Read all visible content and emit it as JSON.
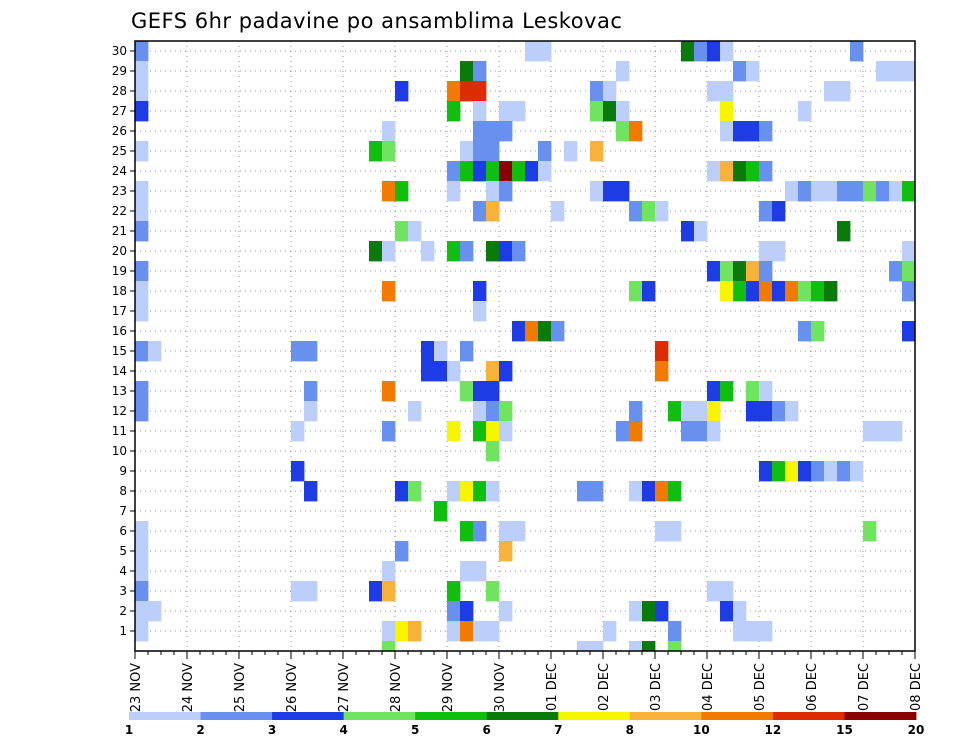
{
  "chart_data": {
    "type": "heatmap",
    "title": "GEFS 6hr padavine po ansamblima Leskovac",
    "y_tick_labels": [
      "1",
      "2",
      "3",
      "4",
      "5",
      "6",
      "7",
      "8",
      "9",
      "10",
      "11",
      "12",
      "13",
      "14",
      "15",
      "16",
      "17",
      "18",
      "19",
      "20",
      "21",
      "22",
      "23",
      "24",
      "25",
      "26",
      "27",
      "28",
      "29",
      "30"
    ],
    "x_tick_labels": [
      "23 NOV",
      "24 NOV",
      "25 NOV",
      "26 NOV",
      "27 NOV",
      "28 NOV",
      "29 NOV",
      "30 NOV",
      "01 DEC",
      "02 DEC",
      "03 DEC",
      "04 DEC",
      "05 DEC",
      "06 DEC",
      "07 DEC",
      "08 DEC"
    ],
    "x_steps_per_day": 4,
    "x_steps_total": 60,
    "ylim": [
      0.5,
      30.5
    ],
    "grid": true,
    "legend_placement": "bottom",
    "levels": [
      "1",
      "2",
      "3",
      "4",
      "5",
      "6",
      "7",
      "8",
      "10",
      "12",
      "15",
      "20"
    ],
    "palette": [
      "#bccffa",
      "#6890ee",
      "#1e3ce6",
      "#70e460",
      "#10be10",
      "#0a7a0a",
      "#f6f600",
      "#f8b23a",
      "#f37a00",
      "#dd2c00",
      "#8b0000"
    ],
    "note": "cells: [member, time_step, color_class]; time_step 0 = 23 NOV 00z (6-hourly)",
    "cells": [
      [
        30,
        0,
        1
      ],
      [
        30,
        30,
        0
      ],
      [
        30,
        31,
        0
      ],
      [
        30,
        42,
        5
      ],
      [
        30,
        43,
        1
      ],
      [
        30,
        44,
        2
      ],
      [
        30,
        45,
        0
      ],
      [
        30,
        55,
        1
      ],
      [
        29,
        0,
        0
      ],
      [
        29,
        25,
        5
      ],
      [
        29,
        26,
        1
      ],
      [
        29,
        37,
        0
      ],
      [
        29,
        46,
        1
      ],
      [
        29,
        47,
        0
      ],
      [
        29,
        57,
        0
      ],
      [
        29,
        58,
        0
      ],
      [
        29,
        59,
        0
      ],
      [
        28,
        0,
        0
      ],
      [
        28,
        20,
        2
      ],
      [
        28,
        24,
        8
      ],
      [
        28,
        25,
        9
      ],
      [
        28,
        26,
        9
      ],
      [
        28,
        35,
        1
      ],
      [
        28,
        36,
        0
      ],
      [
        28,
        44,
        0
      ],
      [
        28,
        45,
        0
      ],
      [
        28,
        53,
        0
      ],
      [
        28,
        54,
        0
      ],
      [
        27,
        0,
        2
      ],
      [
        27,
        24,
        4
      ],
      [
        27,
        26,
        0
      ],
      [
        27,
        28,
        0
      ],
      [
        27,
        29,
        0
      ],
      [
        27,
        35,
        3
      ],
      [
        27,
        36,
        5
      ],
      [
        27,
        37,
        0
      ],
      [
        27,
        45,
        6
      ],
      [
        27,
        51,
        0
      ],
      [
        26,
        19,
        0
      ],
      [
        26,
        26,
        1
      ],
      [
        26,
        27,
        1
      ],
      [
        26,
        28,
        1
      ],
      [
        26,
        37,
        3
      ],
      [
        26,
        38,
        8
      ],
      [
        26,
        45,
        0
      ],
      [
        26,
        46,
        2
      ],
      [
        26,
        47,
        2
      ],
      [
        26,
        48,
        1
      ],
      [
        25,
        0,
        0
      ],
      [
        25,
        18,
        4
      ],
      [
        25,
        19,
        3
      ],
      [
        25,
        25,
        0
      ],
      [
        25,
        26,
        1
      ],
      [
        25,
        27,
        1
      ],
      [
        25,
        31,
        1
      ],
      [
        25,
        33,
        0
      ],
      [
        25,
        35,
        7
      ],
      [
        24,
        24,
        1
      ],
      [
        24,
        25,
        4
      ],
      [
        24,
        26,
        2
      ],
      [
        24,
        27,
        4
      ],
      [
        24,
        28,
        10
      ],
      [
        24,
        29,
        4
      ],
      [
        24,
        30,
        2
      ],
      [
        24,
        31,
        0
      ],
      [
        24,
        44,
        0
      ],
      [
        24,
        45,
        7
      ],
      [
        24,
        46,
        5
      ],
      [
        24,
        47,
        4
      ],
      [
        24,
        48,
        1
      ],
      [
        23,
        0,
        0
      ],
      [
        23,
        19,
        8
      ],
      [
        23,
        20,
        4
      ],
      [
        23,
        24,
        0
      ],
      [
        23,
        27,
        0
      ],
      [
        23,
        28,
        1
      ],
      [
        23,
        35,
        0
      ],
      [
        23,
        36,
        2
      ],
      [
        23,
        37,
        2
      ],
      [
        23,
        50,
        0
      ],
      [
        23,
        51,
        1
      ],
      [
        23,
        52,
        0
      ],
      [
        23,
        53,
        0
      ],
      [
        23,
        54,
        1
      ],
      [
        23,
        55,
        1
      ],
      [
        23,
        56,
        3
      ],
      [
        23,
        57,
        1
      ],
      [
        23,
        58,
        0
      ],
      [
        23,
        59,
        4
      ],
      [
        22,
        0,
        0
      ],
      [
        22,
        26,
        1
      ],
      [
        22,
        27,
        7
      ],
      [
        22,
        32,
        0
      ],
      [
        22,
        38,
        1
      ],
      [
        22,
        39,
        3
      ],
      [
        22,
        40,
        0
      ],
      [
        22,
        48,
        1
      ],
      [
        22,
        49,
        2
      ],
      [
        21,
        0,
        1
      ],
      [
        21,
        20,
        3
      ],
      [
        21,
        21,
        0
      ],
      [
        21,
        42,
        2
      ],
      [
        21,
        43,
        0
      ],
      [
        21,
        54,
        5
      ],
      [
        20,
        18,
        5
      ],
      [
        20,
        19,
        0
      ],
      [
        20,
        22,
        0
      ],
      [
        20,
        24,
        4
      ],
      [
        20,
        25,
        1
      ],
      [
        20,
        27,
        5
      ],
      [
        20,
        28,
        2
      ],
      [
        20,
        29,
        1
      ],
      [
        20,
        48,
        0
      ],
      [
        20,
        49,
        0
      ],
      [
        20,
        59,
        0
      ],
      [
        19,
        0,
        1
      ],
      [
        19,
        44,
        2
      ],
      [
        19,
        45,
        3
      ],
      [
        19,
        46,
        5
      ],
      [
        19,
        47,
        7
      ],
      [
        19,
        48,
        1
      ],
      [
        19,
        58,
        1
      ],
      [
        19,
        59,
        3
      ],
      [
        18,
        0,
        0
      ],
      [
        18,
        19,
        8
      ],
      [
        18,
        26,
        2
      ],
      [
        18,
        38,
        3
      ],
      [
        18,
        39,
        2
      ],
      [
        18,
        45,
        6
      ],
      [
        18,
        46,
        4
      ],
      [
        18,
        47,
        2
      ],
      [
        18,
        48,
        8
      ],
      [
        18,
        49,
        2
      ],
      [
        18,
        50,
        8
      ],
      [
        18,
        51,
        3
      ],
      [
        18,
        52,
        4
      ],
      [
        18,
        53,
        5
      ],
      [
        18,
        59,
        1
      ],
      [
        17,
        0,
        0
      ],
      [
        17,
        26,
        0
      ],
      [
        16,
        29,
        2
      ],
      [
        16,
        30,
        8
      ],
      [
        16,
        31,
        5
      ],
      [
        16,
        32,
        1
      ],
      [
        16,
        51,
        1
      ],
      [
        16,
        52,
        3
      ],
      [
        16,
        59,
        2
      ],
      [
        15,
        0,
        1
      ],
      [
        15,
        1,
        0
      ],
      [
        15,
        12,
        1
      ],
      [
        15,
        13,
        1
      ],
      [
        15,
        22,
        2
      ],
      [
        15,
        23,
        0
      ],
      [
        15,
        25,
        1
      ],
      [
        15,
        40,
        9
      ],
      [
        14,
        22,
        2
      ],
      [
        14,
        23,
        2
      ],
      [
        14,
        24,
        0
      ],
      [
        14,
        27,
        7
      ],
      [
        14,
        28,
        2
      ],
      [
        14,
        40,
        8
      ],
      [
        13,
        0,
        1
      ],
      [
        13,
        13,
        1
      ],
      [
        13,
        19,
        8
      ],
      [
        13,
        25,
        3
      ],
      [
        13,
        26,
        2
      ],
      [
        13,
        27,
        2
      ],
      [
        13,
        44,
        2
      ],
      [
        13,
        45,
        4
      ],
      [
        13,
        47,
        3
      ],
      [
        13,
        48,
        0
      ],
      [
        12,
        0,
        1
      ],
      [
        12,
        13,
        0
      ],
      [
        12,
        21,
        0
      ],
      [
        12,
        26,
        0
      ],
      [
        12,
        27,
        1
      ],
      [
        12,
        28,
        3
      ],
      [
        12,
        38,
        1
      ],
      [
        12,
        41,
        4
      ],
      [
        12,
        42,
        0
      ],
      [
        12,
        43,
        0
      ],
      [
        12,
        44,
        6
      ],
      [
        12,
        47,
        2
      ],
      [
        12,
        48,
        2
      ],
      [
        12,
        49,
        1
      ],
      [
        12,
        50,
        0
      ],
      [
        11,
        12,
        0
      ],
      [
        11,
        19,
        1
      ],
      [
        11,
        24,
        6
      ],
      [
        11,
        26,
        4
      ],
      [
        11,
        27,
        6
      ],
      [
        11,
        28,
        0
      ],
      [
        11,
        37,
        1
      ],
      [
        11,
        38,
        8
      ],
      [
        11,
        42,
        1
      ],
      [
        11,
        43,
        1
      ],
      [
        11,
        44,
        0
      ],
      [
        11,
        56,
        0
      ],
      [
        11,
        57,
        0
      ],
      [
        11,
        58,
        0
      ],
      [
        10,
        27,
        3
      ],
      [
        9,
        12,
        2
      ],
      [
        9,
        48,
        2
      ],
      [
        9,
        49,
        4
      ],
      [
        9,
        50,
        6
      ],
      [
        9,
        51,
        2
      ],
      [
        9,
        52,
        1
      ],
      [
        9,
        53,
        0
      ],
      [
        9,
        54,
        1
      ],
      [
        9,
        55,
        0
      ],
      [
        8,
        13,
        2
      ],
      [
        8,
        20,
        2
      ],
      [
        8,
        21,
        3
      ],
      [
        8,
        24,
        0
      ],
      [
        8,
        25,
        6
      ],
      [
        8,
        26,
        4
      ],
      [
        8,
        27,
        0
      ],
      [
        8,
        34,
        1
      ],
      [
        8,
        35,
        1
      ],
      [
        8,
        38,
        0
      ],
      [
        8,
        39,
        2
      ],
      [
        8,
        40,
        8
      ],
      [
        8,
        41,
        4
      ],
      [
        7,
        23,
        4
      ],
      [
        6,
        0,
        0
      ],
      [
        6,
        25,
        4
      ],
      [
        6,
        26,
        1
      ],
      [
        6,
        28,
        0
      ],
      [
        6,
        29,
        0
      ],
      [
        6,
        40,
        0
      ],
      [
        6,
        41,
        0
      ],
      [
        6,
        56,
        3
      ],
      [
        5,
        0,
        0
      ],
      [
        5,
        20,
        1
      ],
      [
        5,
        28,
        7
      ],
      [
        4,
        0,
        0
      ],
      [
        4,
        19,
        0
      ],
      [
        4,
        25,
        0
      ],
      [
        4,
        26,
        0
      ],
      [
        3,
        0,
        1
      ],
      [
        3,
        12,
        0
      ],
      [
        3,
        13,
        0
      ],
      [
        3,
        18,
        2
      ],
      [
        3,
        19,
        7
      ],
      [
        3,
        24,
        4
      ],
      [
        3,
        27,
        3
      ],
      [
        3,
        44,
        0
      ],
      [
        3,
        45,
        0
      ],
      [
        2,
        0,
        0
      ],
      [
        2,
        1,
        0
      ],
      [
        2,
        24,
        1
      ],
      [
        2,
        25,
        2
      ],
      [
        2,
        28,
        0
      ],
      [
        2,
        38,
        0
      ],
      [
        2,
        39,
        5
      ],
      [
        2,
        40,
        2
      ],
      [
        2,
        45,
        2
      ],
      [
        2,
        46,
        0
      ],
      [
        1,
        0,
        0
      ],
      [
        1,
        19,
        0
      ],
      [
        1,
        20,
        6
      ],
      [
        1,
        21,
        7
      ],
      [
        1,
        24,
        0
      ],
      [
        1,
        25,
        8
      ],
      [
        1,
        26,
        0
      ],
      [
        1,
        27,
        0
      ],
      [
        1,
        36,
        0
      ],
      [
        1,
        41,
        1
      ],
      [
        1,
        46,
        0
      ],
      [
        1,
        47,
        0
      ],
      [
        1,
        48,
        0
      ]
    ],
    "below_axis_marks": [
      [
        19,
        3
      ],
      [
        34,
        0
      ],
      [
        35,
        0
      ],
      [
        38,
        0
      ],
      [
        39,
        5
      ],
      [
        41,
        3
      ]
    ]
  }
}
